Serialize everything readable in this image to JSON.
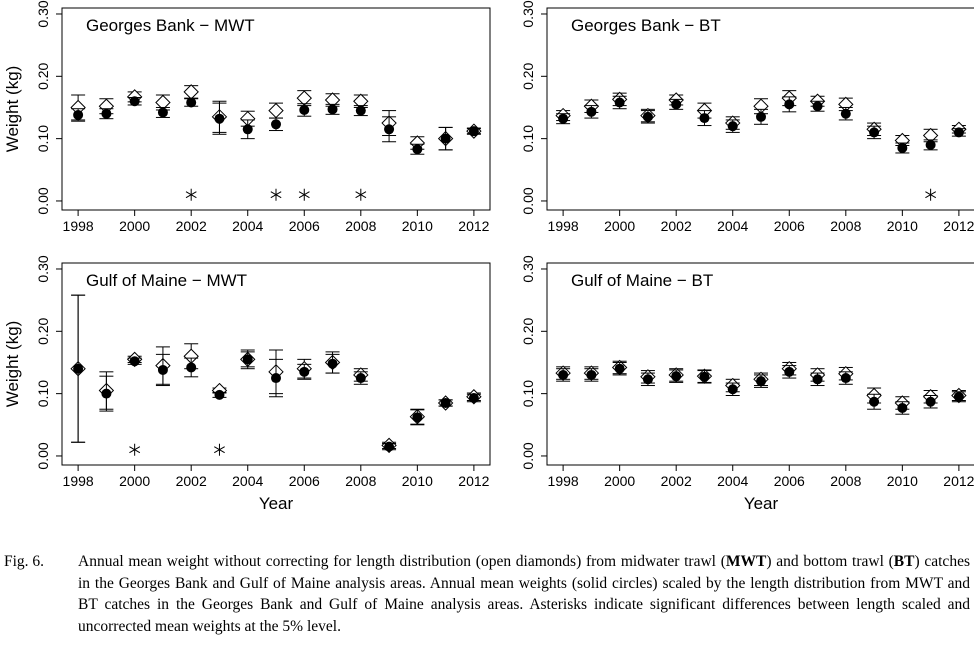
{
  "chart_data": [
    {
      "type": "scatter",
      "title": "Georges Bank − MWT",
      "y_label": "Weight (kg)",
      "x": [
        1998,
        1999,
        2000,
        2001,
        2002,
        2003,
        2004,
        2005,
        2006,
        2007,
        2008,
        2009,
        2010,
        2011,
        2012
      ],
      "xlim": [
        1997.43,
        2012.57
      ],
      "xticks": [
        1998,
        2000,
        2002,
        2004,
        2006,
        2008,
        2010,
        2012
      ],
      "ylim": [
        -0.0145,
        0.3096
      ],
      "yticks": [
        {
          "value": 0,
          "label": "0.00"
        },
        {
          "value": 0.1,
          "label": "0.10"
        },
        {
          "value": 0.2,
          "label": "0.20"
        },
        {
          "value": 0.3,
          "label": "0.30"
        }
      ],
      "series": [
        {
          "marker": "open-diamond",
          "values": [
            0.15,
            0.152,
            0.167,
            0.158,
            0.175,
            0.135,
            0.132,
            0.145,
            0.165,
            0.162,
            0.16,
            0.125,
            0.093,
            0.1,
            0.112
          ],
          "errors": [
            0.02,
            0.012,
            0.008,
            0.012,
            0.01,
            0.025,
            0.012,
            0.012,
            0.012,
            0.01,
            0.01,
            0.02,
            0.01,
            0.018,
            0.005
          ]
        },
        {
          "marker": "solid-circle",
          "values": [
            0.138,
            0.14,
            0.16,
            0.142,
            0.158,
            0.132,
            0.115,
            0.123,
            0.146,
            0.147,
            0.145,
            0.115,
            0.083,
            0.1,
            0.112
          ],
          "errors": [
            0.01,
            0.008,
            0.006,
            0.008,
            0.006,
            0.025,
            0.015,
            0.01,
            0.01,
            0.008,
            0.008,
            0.02,
            0.008,
            0.018,
            0.004
          ]
        }
      ],
      "asterisk_years": [
        2002,
        2005,
        2006,
        2008
      ]
    },
    {
      "type": "scatter",
      "title": "Georges Bank − BT",
      "x": [
        1998,
        1999,
        2000,
        2001,
        2002,
        2003,
        2004,
        2005,
        2006,
        2007,
        2008,
        2009,
        2010,
        2011,
        2012
      ],
      "xlim": [
        1997.43,
        2012.57
      ],
      "xticks": [
        1998,
        2000,
        2002,
        2004,
        2006,
        2008,
        2010,
        2012
      ],
      "ylim": [
        -0.0145,
        0.3096
      ],
      "yticks": [
        {
          "value": 0,
          "label": "0.00"
        },
        {
          "value": 0.1,
          "label": "0.10"
        },
        {
          "value": 0.2,
          "label": "0.20"
        },
        {
          "value": 0.3,
          "label": "0.30"
        }
      ],
      "series": [
        {
          "marker": "open-diamond",
          "values": [
            0.137,
            0.152,
            0.163,
            0.137,
            0.162,
            0.145,
            0.125,
            0.152,
            0.165,
            0.16,
            0.155,
            0.115,
            0.097,
            0.105,
            0.115
          ],
          "errors": [
            0.008,
            0.01,
            0.01,
            0.01,
            0.008,
            0.012,
            0.01,
            0.012,
            0.012,
            0.008,
            0.01,
            0.01,
            0.008,
            0.01,
            0.006
          ]
        },
        {
          "marker": "solid-circle",
          "values": [
            0.132,
            0.143,
            0.158,
            0.135,
            0.155,
            0.133,
            0.12,
            0.135,
            0.155,
            0.152,
            0.14,
            0.11,
            0.085,
            0.09,
            0.11
          ],
          "errors": [
            0.008,
            0.01,
            0.01,
            0.01,
            0.008,
            0.012,
            0.01,
            0.012,
            0.012,
            0.008,
            0.01,
            0.01,
            0.008,
            0.008,
            0.006
          ]
        }
      ],
      "asterisk_years": [
        2011
      ]
    },
    {
      "type": "scatter",
      "title": "Gulf of Maine − MWT",
      "y_label": "Weight (kg)",
      "x_label": "Year",
      "x": [
        1998,
        1999,
        2000,
        2001,
        2002,
        2003,
        2004,
        2005,
        2006,
        2007,
        2008,
        2009,
        2010,
        2011,
        2012
      ],
      "xlim": [
        1997.43,
        2012.57
      ],
      "xticks": [
        1998,
        2000,
        2002,
        2004,
        2006,
        2008,
        2010,
        2012
      ],
      "ylim": [
        -0.0145,
        0.3096
      ],
      "yticks": [
        {
          "value": 0,
          "label": "0.00"
        },
        {
          "value": 0.1,
          "label": "0.10"
        },
        {
          "value": 0.2,
          "label": "0.20"
        },
        {
          "value": 0.3,
          "label": "0.30"
        }
      ],
      "series": [
        {
          "marker": "open-diamond",
          "values": [
            0.14,
            0.105,
            0.155,
            0.145,
            0.16,
            0.105,
            0.155,
            0.135,
            0.14,
            0.15,
            0.13,
            0.017,
            0.063,
            0.085,
            0.095
          ],
          "errors": [
            0.118,
            0.03,
            0.005,
            0.03,
            0.02,
            0.004,
            0.015,
            0.035,
            0.015,
            0.017,
            0.01,
            0.005,
            0.012,
            0.005,
            0.006
          ]
        },
        {
          "marker": "solid-circle",
          "values": [
            0.14,
            0.1,
            0.152,
            0.138,
            0.142,
            0.098,
            0.155,
            0.125,
            0.135,
            0.148,
            0.125,
            0.015,
            0.062,
            0.085,
            0.093
          ],
          "errors": [
            0.118,
            0.028,
            0.005,
            0.025,
            0.015,
            0.004,
            0.012,
            0.03,
            0.012,
            0.015,
            0.01,
            0.005,
            0.012,
            0.005,
            0.006
          ]
        }
      ],
      "asterisk_years": [
        2000,
        2003
      ]
    },
    {
      "type": "scatter",
      "title": "Gulf of Maine − BT",
      "x_label": "Year",
      "x": [
        1998,
        1999,
        2000,
        2001,
        2002,
        2003,
        2004,
        2005,
        2006,
        2007,
        2008,
        2009,
        2010,
        2011,
        2012
      ],
      "xlim": [
        1997.43,
        2012.57
      ],
      "xticks": [
        1998,
        2000,
        2002,
        2004,
        2006,
        2008,
        2010,
        2012
      ],
      "ylim": [
        -0.0145,
        0.3096
      ],
      "yticks": [
        {
          "value": 0,
          "label": "0.00"
        },
        {
          "value": 0.1,
          "label": "0.10"
        },
        {
          "value": 0.2,
          "label": "0.20"
        },
        {
          "value": 0.3,
          "label": "0.30"
        }
      ],
      "series": [
        {
          "marker": "open-diamond",
          "values": [
            0.133,
            0.133,
            0.142,
            0.127,
            0.13,
            0.128,
            0.113,
            0.123,
            0.14,
            0.13,
            0.132,
            0.097,
            0.085,
            0.095,
            0.097
          ],
          "errors": [
            0.01,
            0.01,
            0.01,
            0.01,
            0.01,
            0.01,
            0.01,
            0.01,
            0.01,
            0.01,
            0.01,
            0.012,
            0.01,
            0.01,
            0.008
          ]
        },
        {
          "marker": "solid-circle",
          "values": [
            0.13,
            0.13,
            0.14,
            0.123,
            0.128,
            0.127,
            0.107,
            0.12,
            0.135,
            0.123,
            0.125,
            0.087,
            0.077,
            0.087,
            0.095
          ],
          "errors": [
            0.01,
            0.01,
            0.01,
            0.01,
            0.01,
            0.01,
            0.01,
            0.01,
            0.01,
            0.01,
            0.01,
            0.012,
            0.01,
            0.01,
            0.008
          ]
        }
      ],
      "asterisk_years": []
    }
  ],
  "caption": {
    "label": "Fig. 6.",
    "runs": [
      {
        "text": "Annual mean weight without correcting for length distribution (open diamonds) from midwater trawl (",
        "bold": false
      },
      {
        "text": "MWT",
        "bold": true
      },
      {
        "text": ") and bottom trawl (",
        "bold": false
      },
      {
        "text": "BT",
        "bold": true
      },
      {
        "text": ") catches in the Georges Bank and Gulf of Maine analysis areas. Annual mean weights (solid circles) scaled by the length distribution from MWT and BT catches in the Georges Bank and Gulf of Maine analysis areas. Asterisks indicate significant differences between length scaled and uncorrected mean weights at the 5% level.",
        "bold": false
      }
    ]
  }
}
